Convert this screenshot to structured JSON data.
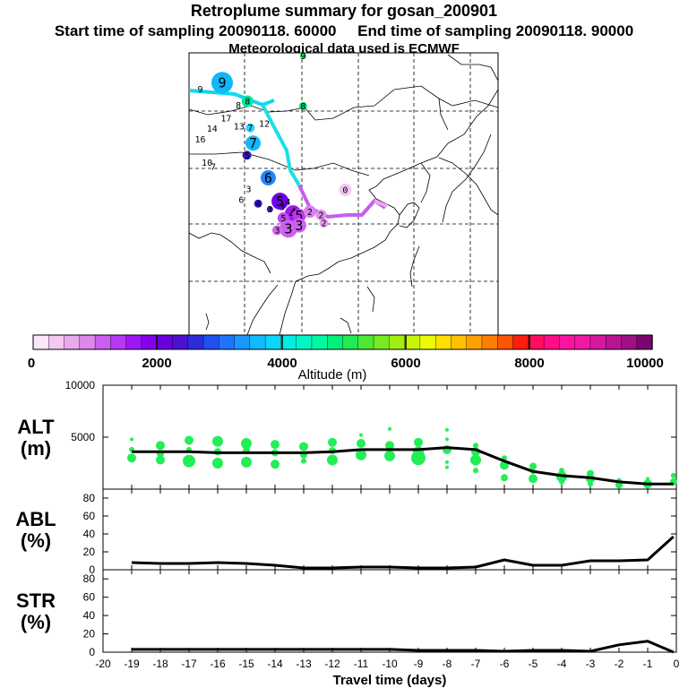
{
  "header": {
    "title": "Retroplume summary for gosan_200901",
    "subtitle": "Start time of sampling 20090118. 60000     End time of sampling 20090118. 90000",
    "met": "Meteorological data used is ECMWF"
  },
  "colorbar": {
    "colors": [
      "#fbe6fb",
      "#f3c8f3",
      "#eaa8ee",
      "#df86ea",
      "#cc5ef0",
      "#b638f4",
      "#9e16f6",
      "#8600ee",
      "#6a00e0",
      "#4c10d2",
      "#2d2ddc",
      "#2050f2",
      "#1f74ff",
      "#1b98ff",
      "#12b9ff",
      "#0ad6f8",
      "#00eee4",
      "#00f7c4",
      "#00f8a0",
      "#00f07a",
      "#22ea55",
      "#4ce836",
      "#78ea22",
      "#a2ee12",
      "#c8f40a",
      "#ecfa06",
      "#ffe000",
      "#ffc000",
      "#ffa000",
      "#ff7e00",
      "#ff5400",
      "#ff1c10",
      "#ff0f5e",
      "#ff0c87",
      "#fb14a2",
      "#ee1aa6",
      "#d618a0",
      "#bb1493",
      "#a00f86",
      "#7a0670"
    ],
    "ticks": [
      "0",
      "2000",
      "4000",
      "6000",
      "8000",
      "10000"
    ],
    "label": "Altitude (m)"
  },
  "map": {
    "markers": [
      {
        "label": "9",
        "lon": 95.9,
        "lat": 51.3,
        "size": 24,
        "color": "#10b8f5"
      },
      {
        "label": "9",
        "lon": 92.0,
        "lat": 50.5,
        "size": 0,
        "color": "#000000"
      },
      {
        "label": "9",
        "lon": 110.3,
        "lat": 54.6,
        "size": 7,
        "color": "#22e860"
      },
      {
        "label": "8",
        "lon": 100.4,
        "lat": 49.0,
        "size": 13,
        "color": "#00e6a0"
      },
      {
        "label": "8",
        "lon": 98.8,
        "lat": 48.5,
        "size": 0,
        "color": "#000000"
      },
      {
        "label": "8",
        "lon": 110.3,
        "lat": 48.4,
        "size": 9,
        "color": "#00e070"
      },
      {
        "label": "7",
        "lon": 100.9,
        "lat": 45.7,
        "size": 10,
        "color": "#2fd0ff"
      },
      {
        "label": "7",
        "lon": 101.4,
        "lat": 43.8,
        "size": 17,
        "color": "#12b8ff"
      },
      {
        "label": "12",
        "lon": 103.4,
        "lat": 46.2,
        "size": 0,
        "color": "#000000"
      },
      {
        "label": "13",
        "lon": 98.9,
        "lat": 45.9,
        "size": 0,
        "color": "#000000"
      },
      {
        "label": "14",
        "lon": 94.1,
        "lat": 45.6,
        "size": 0,
        "color": "#000000"
      },
      {
        "label": "17",
        "lon": 96.6,
        "lat": 46.9,
        "size": 0,
        "color": "#000000"
      },
      {
        "label": "16",
        "lon": 92.0,
        "lat": 44.3,
        "size": 0,
        "color": "#000000"
      },
      {
        "label": "10",
        "lon": 93.2,
        "lat": 41.4,
        "size": 0,
        "color": "#000000"
      },
      {
        "label": "7",
        "lon": 94.3,
        "lat": 40.9,
        "size": 0,
        "color": "#000000"
      },
      {
        "label": "5",
        "lon": 100.3,
        "lat": 42.3,
        "size": 10,
        "color": "#3010d0"
      },
      {
        "label": "6",
        "lon": 104.1,
        "lat": 39.5,
        "size": 17,
        "color": "#1e86ff"
      },
      {
        "label": "3",
        "lon": 100.6,
        "lat": 38.1,
        "size": 0,
        "color": "#000000"
      },
      {
        "label": "6",
        "lon": 99.3,
        "lat": 36.8,
        "size": 0,
        "color": "#000000"
      },
      {
        "label": "4",
        "lon": 102.3,
        "lat": 36.3,
        "size": 9,
        "color": "#3a0cd0"
      },
      {
        "label": "3",
        "lon": 104.4,
        "lat": 35.6,
        "size": 7,
        "color": "#4c10c8"
      },
      {
        "label": "5",
        "lon": 106.2,
        "lat": 36.6,
        "size": 19,
        "color": "#7000e8"
      },
      {
        "label": "3",
        "lon": 106.6,
        "lat": 35.9,
        "size": 0,
        "color": "#000000"
      },
      {
        "label": "4",
        "lon": 107.6,
        "lat": 36.5,
        "size": 0,
        "color": "#000000"
      },
      {
        "label": "4",
        "lon": 108.5,
        "lat": 35.1,
        "size": 18,
        "color": "#a214f2"
      },
      {
        "label": "5",
        "lon": 109.6,
        "lat": 34.8,
        "size": 15,
        "color": "#b838f0"
      },
      {
        "label": "5",
        "lon": 106.8,
        "lat": 34.5,
        "size": 13,
        "color": "#c04cf0"
      },
      {
        "label": "3",
        "lon": 107.7,
        "lat": 33.2,
        "size": 20,
        "color": "#cc5ef0"
      },
      {
        "label": "3",
        "lon": 109.6,
        "lat": 33.6,
        "size": 16,
        "color": "#d05ef0"
      },
      {
        "label": "3",
        "lon": 105.7,
        "lat": 33.0,
        "size": 11,
        "color": "#d86ae8"
      },
      {
        "label": "2",
        "lon": 111.5,
        "lat": 35.3,
        "size": 14,
        "color": "#da80ec"
      },
      {
        "label": "2",
        "lon": 113.5,
        "lat": 34.9,
        "size": 12,
        "color": "#e090ec"
      },
      {
        "label": "2",
        "lon": 114.0,
        "lat": 33.9,
        "size": 10,
        "color": "#e49aee"
      },
      {
        "label": "0",
        "lon": 117.8,
        "lat": 38.0,
        "size": 14,
        "color": "#f2c6f2"
      }
    ]
  },
  "chart_data": [
    {
      "type": "scatter",
      "panel": "ALT",
      "ylabel": "ALT (m)",
      "ylabel_lines": [
        "ALT",
        "(m)"
      ],
      "ylim": [
        0,
        10000
      ],
      "yticks": [
        0,
        5000,
        10000
      ],
      "ytick_labels": [
        "",
        "5000",
        "10000"
      ],
      "xlim": [
        -20,
        0
      ],
      "points_color": "#22ee55",
      "points": [
        {
          "x": -19.0,
          "y": 4800,
          "s": 2
        },
        {
          "x": -19.0,
          "y": 3800,
          "s": 3
        },
        {
          "x": -19.0,
          "y": 3000,
          "s": 5
        },
        {
          "x": -18.0,
          "y": 4200,
          "s": 5
        },
        {
          "x": -18.0,
          "y": 3400,
          "s": 4
        },
        {
          "x": -18.0,
          "y": 2800,
          "s": 5
        },
        {
          "x": -17.0,
          "y": 4700,
          "s": 5
        },
        {
          "x": -17.0,
          "y": 3800,
          "s": 3
        },
        {
          "x": -17.0,
          "y": 2700,
          "s": 7
        },
        {
          "x": -16.0,
          "y": 4600,
          "s": 6
        },
        {
          "x": -16.0,
          "y": 3600,
          "s": 4
        },
        {
          "x": -16.0,
          "y": 2500,
          "s": 6
        },
        {
          "x": -15.0,
          "y": 4400,
          "s": 6
        },
        {
          "x": -15.0,
          "y": 3700,
          "s": 4
        },
        {
          "x": -15.0,
          "y": 2600,
          "s": 6
        },
        {
          "x": -14.0,
          "y": 4300,
          "s": 5
        },
        {
          "x": -14.0,
          "y": 3500,
          "s": 4
        },
        {
          "x": -14.0,
          "y": 2400,
          "s": 5
        },
        {
          "x": -13.0,
          "y": 4100,
          "s": 5
        },
        {
          "x": -13.0,
          "y": 3300,
          "s": 4
        },
        {
          "x": -13.0,
          "y": 2700,
          "s": 3
        },
        {
          "x": -12.0,
          "y": 4500,
          "s": 5
        },
        {
          "x": -12.0,
          "y": 3700,
          "s": 4
        },
        {
          "x": -12.0,
          "y": 2800,
          "s": 6
        },
        {
          "x": -11.0,
          "y": 5200,
          "s": 2
        },
        {
          "x": -11.0,
          "y": 4400,
          "s": 5
        },
        {
          "x": -11.0,
          "y": 3300,
          "s": 6
        },
        {
          "x": -10.0,
          "y": 5800,
          "s": 2
        },
        {
          "x": -10.0,
          "y": 4200,
          "s": 5
        },
        {
          "x": -10.0,
          "y": 3200,
          "s": 6
        },
        {
          "x": -9.0,
          "y": 4500,
          "s": 5
        },
        {
          "x": -9.0,
          "y": 3600,
          "s": 6
        },
        {
          "x": -9.0,
          "y": 3000,
          "s": 8
        },
        {
          "x": -8.0,
          "y": 5700,
          "s": 2
        },
        {
          "x": -8.0,
          "y": 4800,
          "s": 2
        },
        {
          "x": -8.0,
          "y": 3800,
          "s": 5
        },
        {
          "x": -8.0,
          "y": 2600,
          "s": 2
        },
        {
          "x": -8.0,
          "y": 2100,
          "s": 2
        },
        {
          "x": -7.0,
          "y": 4200,
          "s": 3
        },
        {
          "x": -7.0,
          "y": 3600,
          "s": 5
        },
        {
          "x": -7.0,
          "y": 2800,
          "s": 6
        },
        {
          "x": -7.0,
          "y": 1800,
          "s": 3
        },
        {
          "x": -6.0,
          "y": 3000,
          "s": 3
        },
        {
          "x": -6.0,
          "y": 2300,
          "s": 5
        },
        {
          "x": -6.0,
          "y": 1100,
          "s": 4
        },
        {
          "x": -5.0,
          "y": 2200,
          "s": 4
        },
        {
          "x": -5.0,
          "y": 1700,
          "s": 3
        },
        {
          "x": -5.0,
          "y": 1000,
          "s": 5
        },
        {
          "x": -4.0,
          "y": 1800,
          "s": 3
        },
        {
          "x": -4.0,
          "y": 1200,
          "s": 6
        },
        {
          "x": -4.0,
          "y": 700,
          "s": 3
        },
        {
          "x": -3.0,
          "y": 1500,
          "s": 4
        },
        {
          "x": -3.0,
          "y": 1000,
          "s": 5
        },
        {
          "x": -3.0,
          "y": 500,
          "s": 3
        },
        {
          "x": -2.0,
          "y": 800,
          "s": 3
        },
        {
          "x": -2.0,
          "y": 400,
          "s": 4
        },
        {
          "x": -1.0,
          "y": 1000,
          "s": 2
        },
        {
          "x": -1.0,
          "y": 500,
          "s": 5
        },
        {
          "x": -0.1,
          "y": 1300,
          "s": 3
        },
        {
          "x": -0.1,
          "y": 700,
          "s": 4
        }
      ],
      "line": {
        "x": [
          -19,
          -18,
          -17,
          -16,
          -15,
          -14,
          -13,
          -12,
          -11,
          -10,
          -9,
          -8,
          -7,
          -6,
          -5,
          -4,
          -3,
          -2,
          -1,
          -0.1
        ],
        "y": [
          3600,
          3600,
          3600,
          3500,
          3500,
          3500,
          3500,
          3600,
          3800,
          3800,
          3800,
          4000,
          3800,
          2700,
          1700,
          1300,
          1100,
          700,
          500,
          500
        ]
      }
    },
    {
      "type": "line",
      "panel": "ABL",
      "ylabel": "ABL (%)",
      "ylabel_lines": [
        "ABL",
        "(%)"
      ],
      "ylim": [
        0,
        90
      ],
      "yticks": [
        0,
        20,
        40,
        60,
        80
      ],
      "ytick_labels": [
        "0",
        "20",
        "40",
        "60",
        "80"
      ],
      "xlim": [
        -20,
        0
      ],
      "line": {
        "x": [
          -19,
          -18,
          -17,
          -16,
          -15,
          -14,
          -13,
          -12,
          -11,
          -10,
          -9,
          -8,
          -7,
          -6,
          -5,
          -4,
          -3,
          -2,
          -1,
          -0.1
        ],
        "y": [
          8,
          7,
          7,
          8,
          7,
          5,
          2,
          2,
          3,
          3,
          2,
          2,
          3,
          11,
          5,
          5,
          10,
          10,
          11,
          37
        ]
      }
    },
    {
      "type": "line",
      "panel": "STR",
      "ylabel": "STR (%)",
      "ylabel_lines": [
        "STR",
        "(%)"
      ],
      "ylim": [
        0,
        90
      ],
      "yticks": [
        0,
        20,
        40,
        60,
        80
      ],
      "ytick_labels": [
        "0",
        "20",
        "40",
        "60",
        "80"
      ],
      "xlim": [
        -20,
        0
      ],
      "xlabel": "Travel time (days)",
      "xtick_labels": [
        "-20",
        "-19",
        "-18",
        "-17",
        "-16",
        "-15",
        "-14",
        "-13",
        "-12",
        "-11",
        "-10",
        "-9",
        "-8",
        "-7",
        "-6",
        "-5",
        "-4",
        "-3",
        "-2",
        "-1",
        "0"
      ],
      "line": {
        "x": [
          -19,
          -18,
          -17,
          -16,
          -15,
          -14,
          -13,
          -12,
          -11,
          -10,
          -9,
          -8,
          -7,
          -6,
          -5,
          -4,
          -3,
          -2,
          -1,
          -0.1
        ],
        "y": [
          3,
          3,
          3,
          3,
          3,
          3,
          3,
          3,
          3,
          3,
          2,
          2,
          2,
          1,
          2,
          2,
          1,
          8,
          12,
          0
        ]
      }
    }
  ]
}
